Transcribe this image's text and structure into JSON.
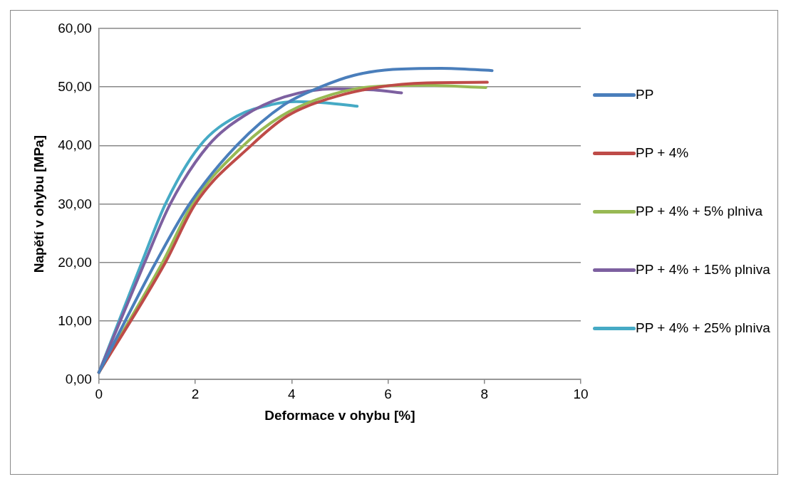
{
  "chart_data": {
    "type": "line",
    "xlabel": "Deformace v ohybu [%]",
    "ylabel": "Napětí v ohybu [MPa]",
    "xlim": [
      0,
      10
    ],
    "xticks": [
      0,
      2,
      4,
      6,
      8,
      10
    ],
    "ylim": [
      0,
      60
    ],
    "yticks": [
      {
        "value": 0,
        "label": "0,00"
      },
      {
        "value": 10,
        "label": "10,00"
      },
      {
        "value": 20,
        "label": "20,00"
      },
      {
        "value": 30,
        "label": "30,00"
      },
      {
        "value": 40,
        "label": "40,00"
      },
      {
        "value": 50,
        "label": "50,00"
      },
      {
        "value": 60,
        "label": "60,00"
      }
    ],
    "grid": "y",
    "legend": "right",
    "marker": "none",
    "line_style": "solid",
    "series": [
      {
        "name": "PP",
        "color": "#4a7ebb",
        "x": [
          0,
          1.18,
          1.88,
          2.86,
          3.85,
          4.6,
          5.3,
          6.1,
          7.1,
          8.16
        ],
        "values": [
          1.2,
          20,
          30,
          40,
          47,
          50,
          52,
          53,
          53.2,
          52.8
        ]
      },
      {
        "name": "PP + 4%",
        "color": "#be4b48",
        "x": [
          0,
          1.38,
          2.0,
          3.16,
          3.9,
          4.77,
          5.82,
          6.8,
          8.06
        ],
        "values": [
          1.2,
          20,
          30,
          40,
          45,
          48,
          50,
          50.7,
          50.8
        ]
      },
      {
        "name": "PP + 4% + 5% plniva",
        "color": "#98b954",
        "x": [
          0,
          1.32,
          1.94,
          3.0,
          3.78,
          4.57,
          5.6,
          6.7,
          8.03
        ],
        "values": [
          1.2,
          20,
          30,
          40,
          45,
          48,
          50,
          50.3,
          49.9
        ]
      },
      {
        "name": "PP + 4% + 15% plniva",
        "color": "#7d60a0",
        "x": [
          0,
          0.95,
          1.48,
          2.27,
          3.0,
          3.85,
          4.9,
          5.7,
          6.28
        ],
        "values": [
          1.2,
          20,
          30,
          40,
          45,
          48.3,
          49.7,
          49.5,
          49.0
        ]
      },
      {
        "name": "PP + 4% + 25% plniva",
        "color": "#46aac5",
        "x": [
          0,
          0.89,
          1.38,
          2.1,
          2.86,
          3.59,
          4.1,
          4.7,
          5.36
        ],
        "values": [
          1.2,
          20,
          30,
          40,
          45,
          47,
          47.5,
          47.3,
          46.7
        ]
      }
    ]
  }
}
